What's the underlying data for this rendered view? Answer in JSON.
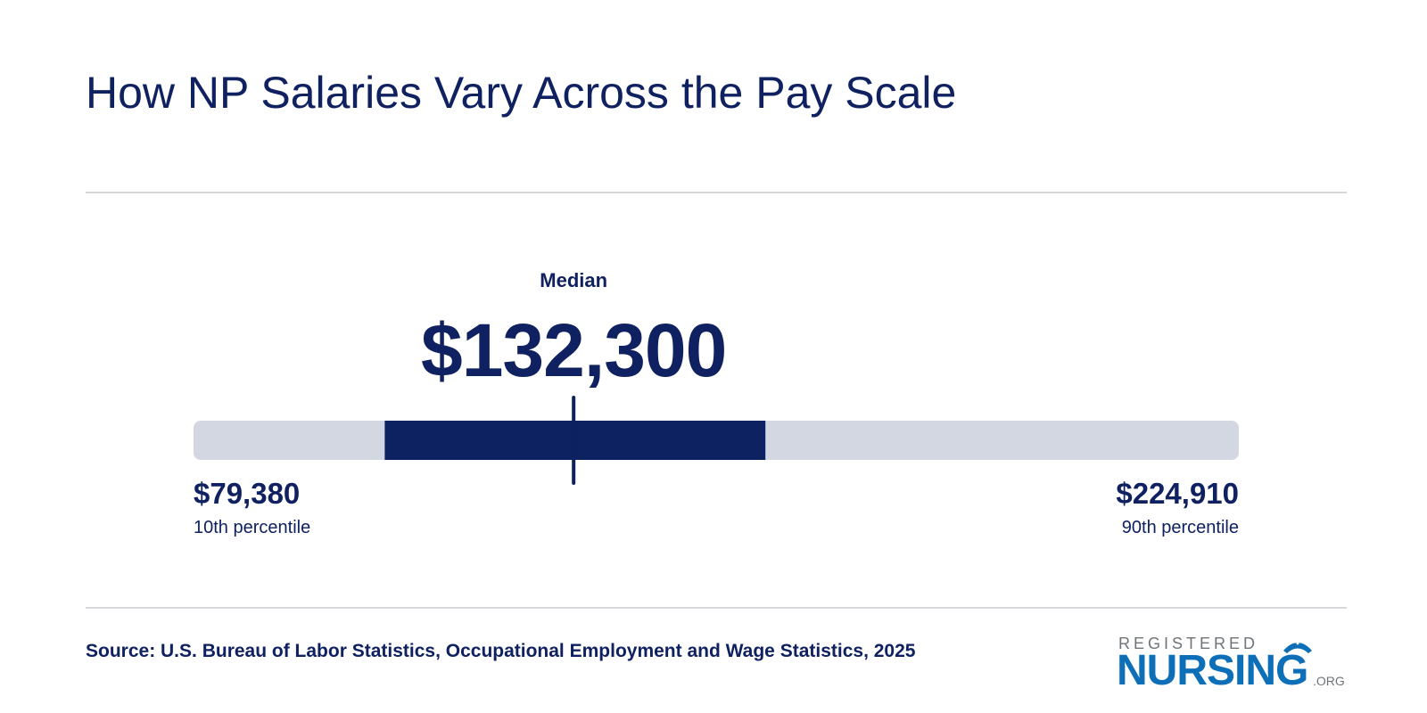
{
  "title": "How NP Salaries Vary Across the Pay Scale",
  "chart_data": {
    "type": "range",
    "min": 79380,
    "median": 132300,
    "max": 224910,
    "iqr_low": 106000,
    "iqr_high": 159000,
    "median_caption": "Median",
    "median_label": "$132,300",
    "low_label": "$79,380",
    "low_caption": "10th percentile",
    "high_label": "$224,910",
    "high_caption": "90th percentile",
    "colors": {
      "track": "#d3d7e2",
      "highlight": "#0d2260",
      "median_marker": "#0d2260"
    }
  },
  "source": "Source: U.S. Bureau of Labor Statistics, Occupational Employment and Wage Statistics, 2025",
  "logo": {
    "top": "REGISTERED",
    "main": "NURSING",
    "suffix": ".ORG",
    "colors": {
      "main": "#0d6fb8",
      "muted": "#6f7478"
    }
  }
}
